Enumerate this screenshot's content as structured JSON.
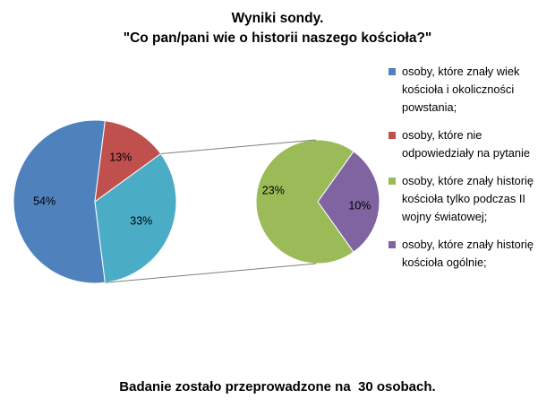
{
  "chart_data": {
    "type": "pie",
    "title_line1": "Wyniki sondy.",
    "title_line2": "\"Co pan/pani wie o historii naszego kościoła?\"",
    "main_pie": {
      "slices": [
        {
          "label": "54%",
          "value": 54,
          "color": "#4F81BD"
        },
        {
          "label": "13%",
          "value": 13,
          "color": "#C0504D"
        },
        {
          "label": "33%",
          "value": 33,
          "color": "#4BACC6"
        }
      ]
    },
    "sub_pie": {
      "slices": [
        {
          "label": "23%",
          "value": 23,
          "color": "#9BBB59"
        },
        {
          "label": "10%",
          "value": 10,
          "color": "#8064A2"
        }
      ]
    },
    "legend": [
      {
        "text": "osoby, które znały wiek kościoła i okoliczności powstania;",
        "color": "#4F81BD"
      },
      {
        "text": "osoby, które nie odpowiedziały na pytanie",
        "color": "#C0504D"
      },
      {
        "text": "osoby, które znały historię kościoła tylko podczas II wojny światowej;",
        "color": "#9BBB59"
      },
      {
        "text": "osoby, które znały historię kościoła ogólnie;",
        "color": "#8064A2"
      }
    ]
  },
  "footer": "Badanie zostało przeprowadzone na  30 osobach."
}
